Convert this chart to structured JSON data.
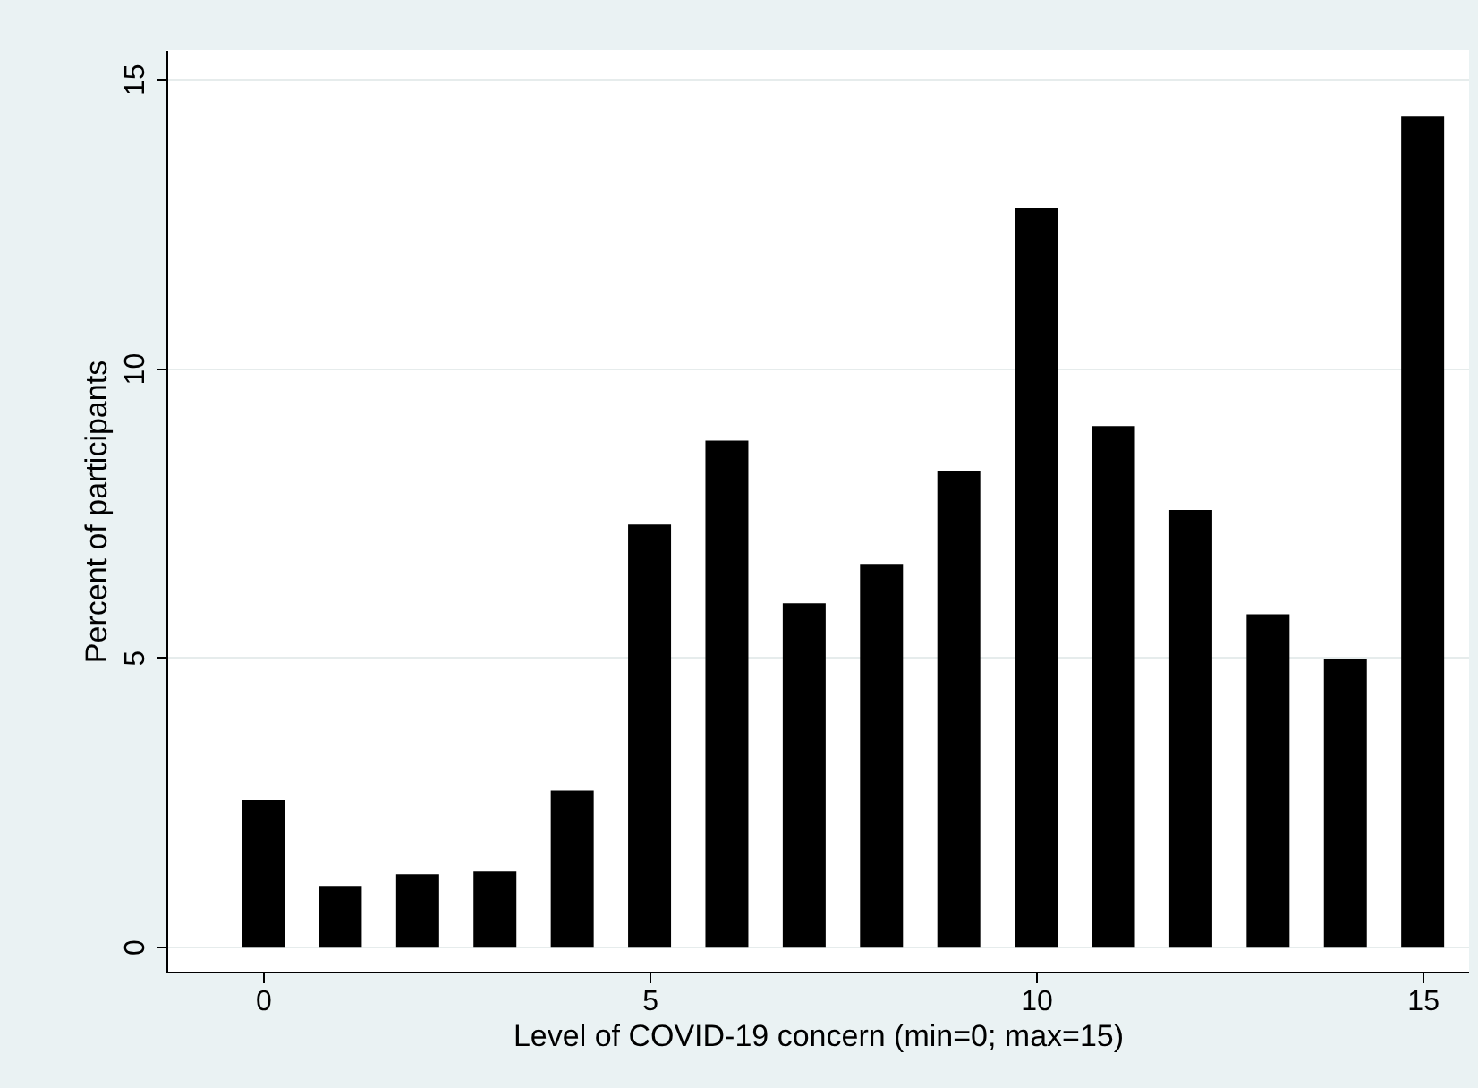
{
  "chart_data": {
    "type": "bar",
    "xlabel": "Level of COVID-19 concern (min=0; max=15)",
    "ylabel": "Percent of participants",
    "x": [
      0,
      1,
      2,
      3,
      4,
      5,
      6,
      7,
      8,
      9,
      10,
      11,
      12,
      13,
      14,
      15
    ],
    "values": [
      2.54,
      1.05,
      1.25,
      1.3,
      2.7,
      7.3,
      8.75,
      5.94,
      6.62,
      8.23,
      12.77,
      9.0,
      7.55,
      5.75,
      4.98,
      14.35
    ],
    "color": "#000000",
    "xlim": [
      -1.25,
      15.6
    ],
    "xticks": [
      0,
      5,
      10,
      15
    ],
    "ylim": [
      -0.43,
      15.5
    ],
    "yticks": [
      0,
      5,
      10,
      15
    ],
    "grid": "y"
  }
}
